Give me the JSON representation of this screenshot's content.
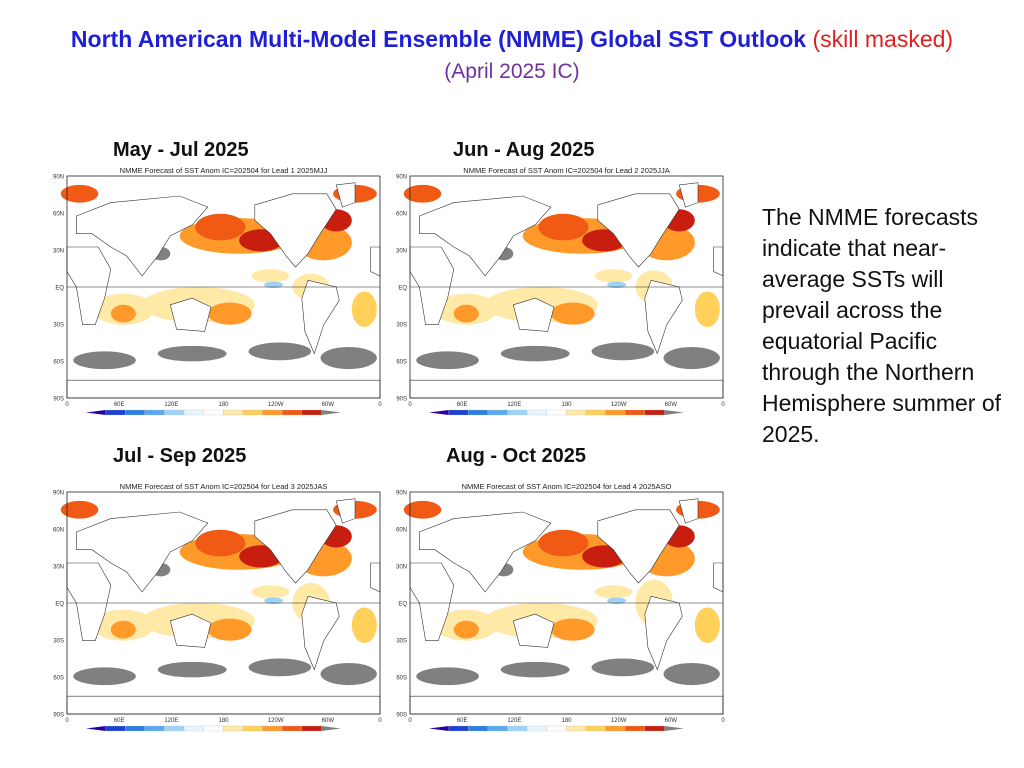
{
  "header": {
    "title_main": "North American Multi-Model Ensemble (NMME) Global SST Outlook",
    "title_note": "(skill masked)",
    "subtitle": "(April 2025 IC)"
  },
  "colors": {
    "title": "#1f1fd6",
    "note": "#e02020",
    "subtitle": "#7030a0",
    "land": "#ffffff",
    "masked": "#808080"
  },
  "panels": [
    {
      "label": "May - Jul 2025",
      "map_title": "NMME Forecast of SST Anom IC=202504 for Lead 1 2025MJJ"
    },
    {
      "label": "Jun - Aug 2025",
      "map_title": "NMME Forecast of SST Anom IC=202504 for Lead 2 2025JJA"
    },
    {
      "label": "Jul - Sep 2025",
      "map_title": "NMME Forecast of SST Anom IC=202504 for Lead 3 2025JAS"
    },
    {
      "label": "Aug - Oct 2025",
      "map_title": "NMME Forecast of SST Anom IC=202504 for Lead 4 2025ASO"
    }
  ],
  "map_axes": {
    "lat_labels": [
      "90N",
      "60N",
      "30N",
      "EQ",
      "30S",
      "60S",
      "90S"
    ],
    "lon_labels": [
      "0",
      "60E",
      "120E",
      "180",
      "120W",
      "60W",
      "0"
    ]
  },
  "colorbar": {
    "ticks": [
      "-3",
      "-2",
      "-1",
      "-0.5",
      "-0.25",
      "0.25",
      "0.5",
      "1",
      "2",
      "3"
    ],
    "colors": [
      "#2a00a0",
      "#1f3fd0",
      "#2c7fe0",
      "#5aa9f0",
      "#9fd3f6",
      "#e6f6ff",
      "#ffffff",
      "#ffe9a6",
      "#ffd05a",
      "#ff9a2a",
      "#f05a14",
      "#c81e10",
      "#808080"
    ]
  },
  "description": "The NMME forecasts indicate that near-average SSTs will prevail across the equatorial Pacific through the Northern Hemisphere summer of 2025."
}
